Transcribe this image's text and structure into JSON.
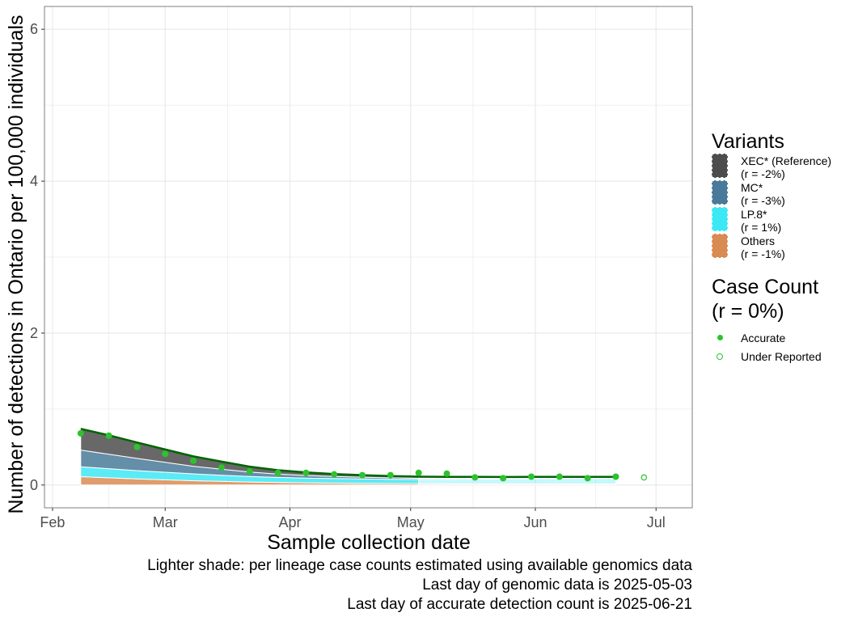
{
  "chart_data": {
    "type": "area",
    "xlabel": "Sample collection date",
    "ylabel": "Number of detections in Ontario per 100,000 individuals",
    "xlim": [
      "2025-01-30",
      "2025-07-10"
    ],
    "ylim": [
      -0.3,
      6.3
    ],
    "x_ticks": [
      {
        "date": "2025-02-01",
        "label": "Feb"
      },
      {
        "date": "2025-03-01",
        "label": "Mar"
      },
      {
        "date": "2025-04-01",
        "label": "Apr"
      },
      {
        "date": "2025-05-01",
        "label": "May"
      },
      {
        "date": "2025-06-01",
        "label": "Jun"
      },
      {
        "date": "2025-07-01",
        "label": "Jul"
      }
    ],
    "y_ticks": [
      0,
      2,
      4,
      6
    ],
    "grid": true,
    "genomic_end": "2025-05-03",
    "x": [
      "2025-02-08",
      "2025-02-15",
      "2025-02-22",
      "2025-03-01",
      "2025-03-08",
      "2025-03-15",
      "2025-03-22",
      "2025-03-29",
      "2025-04-05",
      "2025-04-12",
      "2025-04-19",
      "2025-04-26",
      "2025-05-03",
      "2025-05-10",
      "2025-05-17",
      "2025-05-24",
      "2025-05-31",
      "2025-06-07",
      "2025-06-14",
      "2025-06-21"
    ],
    "series": [
      {
        "name": "Others",
        "color": "#d98b52",
        "values": [
          0.11,
          0.095,
          0.08,
          0.068,
          0.057,
          0.048,
          0.04,
          0.034,
          0.029,
          0.025,
          0.022,
          0.02,
          0.019,
          0.017,
          0.016,
          0.015,
          0.015,
          0.015,
          0.014,
          0.014
        ]
      },
      {
        "name": "LP.8*",
        "color": "#3de8f5",
        "values": [
          0.13,
          0.12,
          0.11,
          0.1,
          0.09,
          0.08,
          0.072,
          0.066,
          0.062,
          0.06,
          0.058,
          0.056,
          0.055,
          0.058,
          0.061,
          0.064,
          0.067,
          0.07,
          0.072,
          0.074
        ]
      },
      {
        "name": "MC*",
        "color": "#4a7a99",
        "values": [
          0.22,
          0.19,
          0.16,
          0.13,
          0.1,
          0.08,
          0.06,
          0.045,
          0.035,
          0.028,
          0.023,
          0.019,
          0.016,
          0.015,
          0.014,
          0.013,
          0.012,
          0.011,
          0.011,
          0.01
        ]
      },
      {
        "name": "XEC* (Reference)",
        "color": "#4d4d4d",
        "values": [
          0.28,
          0.25,
          0.21,
          0.17,
          0.13,
          0.1,
          0.07,
          0.05,
          0.04,
          0.032,
          0.027,
          0.023,
          0.02,
          0.018,
          0.016,
          0.014,
          0.013,
          0.012,
          0.011,
          0.01
        ]
      }
    ],
    "total_fit": [
      0.74,
      0.655,
      0.56,
      0.468,
      0.377,
      0.308,
      0.242,
      0.195,
      0.166,
      0.145,
      0.13,
      0.118,
      0.11,
      0.108,
      0.107,
      0.106,
      0.107,
      0.108,
      0.108,
      0.108
    ],
    "case_count_points": [
      {
        "x": "2025-02-08",
        "y": 0.68,
        "status": "Accurate"
      },
      {
        "x": "2025-02-15",
        "y": 0.65,
        "status": "Accurate"
      },
      {
        "x": "2025-02-22",
        "y": 0.5,
        "status": "Accurate"
      },
      {
        "x": "2025-03-01",
        "y": 0.41,
        "status": "Accurate"
      },
      {
        "x": "2025-03-08",
        "y": 0.32,
        "status": "Accurate"
      },
      {
        "x": "2025-03-15",
        "y": 0.23,
        "status": "Accurate"
      },
      {
        "x": "2025-03-22",
        "y": 0.18,
        "status": "Accurate"
      },
      {
        "x": "2025-03-29",
        "y": 0.16,
        "status": "Accurate"
      },
      {
        "x": "2025-04-05",
        "y": 0.16,
        "status": "Accurate"
      },
      {
        "x": "2025-04-12",
        "y": 0.14,
        "status": "Accurate"
      },
      {
        "x": "2025-04-19",
        "y": 0.13,
        "status": "Accurate"
      },
      {
        "x": "2025-04-26",
        "y": 0.13,
        "status": "Accurate"
      },
      {
        "x": "2025-05-03",
        "y": 0.16,
        "status": "Accurate"
      },
      {
        "x": "2025-05-10",
        "y": 0.15,
        "status": "Accurate"
      },
      {
        "x": "2025-05-17",
        "y": 0.1,
        "status": "Accurate"
      },
      {
        "x": "2025-05-24",
        "y": 0.09,
        "status": "Accurate"
      },
      {
        "x": "2025-05-31",
        "y": 0.11,
        "status": "Accurate"
      },
      {
        "x": "2025-06-07",
        "y": 0.11,
        "status": "Accurate"
      },
      {
        "x": "2025-06-14",
        "y": 0.09,
        "status": "Accurate"
      },
      {
        "x": "2025-06-21",
        "y": 0.11,
        "status": "Accurate"
      },
      {
        "x": "2025-06-28",
        "y": 0.1,
        "status": "Under Reported"
      }
    ],
    "colors": {
      "fit_line": "#006400",
      "point": "#2ec22e",
      "grid": "#ebebeb",
      "panel_border": "#7f7f7f"
    }
  },
  "legend": {
    "title": "Variants",
    "items": [
      {
        "label": "XEC* (Reference)\n(r = -2%)",
        "color": "#4d4d4d"
      },
      {
        "label": "MC*\n(r = -3%)",
        "color": "#4a7a99"
      },
      {
        "label": "LP.8*\n(r = 1%)",
        "color": "#3de8f5"
      },
      {
        "label": "Others\n(r = -1%)",
        "color": "#d98b52"
      }
    ]
  },
  "case_count_legend": {
    "title": "Case Count\n(r = 0%)",
    "accurate_label": "Accurate",
    "under_reported_label": "Under Reported"
  },
  "caption": {
    "line1": "Lighter shade: per lineage case counts estimated using available genomics data",
    "line2": "Last day of genomic data is 2025-05-03",
    "line3": "Last day of accurate detection count is 2025-06-21"
  }
}
